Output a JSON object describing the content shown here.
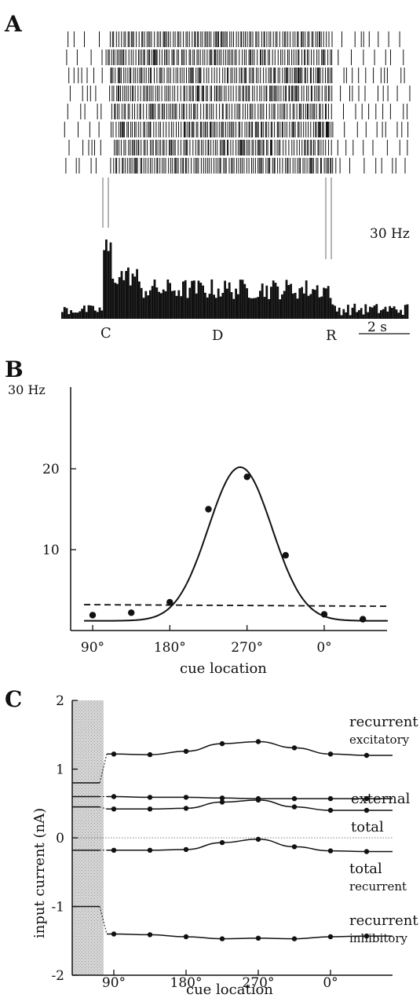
{
  "panels": [
    {
      "letter": "A",
      "type": "raster-psth",
      "scale_label": "30 Hz",
      "event_labels": [
        "C",
        "D",
        "R"
      ],
      "time_scale_label": "2 s",
      "raster_rows": 8,
      "psth_baseline_rate": 2,
      "psth_cue_peak_rate": 14,
      "psth_delay_rate": 6
    },
    {
      "letter": "B",
      "type": "tuning-curve",
      "chart_data": {
        "type": "scatter",
        "ylabel_top": "30 Hz",
        "xlabel": "cue location",
        "xticks": [
          "90°",
          "180°",
          "270°",
          "0°"
        ],
        "yticks": [
          "10",
          "20"
        ],
        "ylim": [
          0,
          30
        ],
        "points_x_deg": [
          90,
          135,
          180,
          225,
          270,
          315,
          360,
          405
        ],
        "points_y": [
          1.9,
          2.2,
          3.5,
          15.0,
          19.0,
          9.3,
          2.0,
          1.4
        ],
        "fit": {
          "type": "gaussian",
          "baseline": 1.2,
          "amplitude": 19.0,
          "center_deg": 262,
          "sigma_deg": 37
        },
        "dashed_baseline": {
          "start": 3.2,
          "end": 3.0
        }
      }
    },
    {
      "letter": "C",
      "type": "input-currents",
      "chart_data": {
        "type": "line",
        "xlabel": "cue location",
        "ylabel": "input current (nA)",
        "xticks": [
          "90°",
          "180°",
          "270°",
          "0°"
        ],
        "yticks": [
          "-2",
          "-1",
          "0",
          "1",
          "2"
        ],
        "ylim": [
          -2,
          2
        ],
        "x_points_deg": [
          90,
          135,
          180,
          225,
          270,
          315,
          360,
          405
        ],
        "series": [
          {
            "name": "recurrent excitatory",
            "label_main": "recurrent",
            "label_sub": "excitatory",
            "pre_value": 0.8,
            "values": [
              1.22,
              1.21,
              1.26,
              1.37,
              1.4,
              1.31,
              1.22,
              1.2
            ]
          },
          {
            "name": "external",
            "label_main": "external",
            "label_sub": "",
            "pre_value": 0.6,
            "values": [
              0.6,
              0.59,
              0.59,
              0.58,
              0.57,
              0.57,
              0.57,
              0.57
            ]
          },
          {
            "name": "total",
            "label_main": "total",
            "label_sub": "",
            "pre_value": 0.45,
            "values": [
              0.42,
              0.42,
              0.43,
              0.52,
              0.55,
              0.45,
              0.4,
              0.4
            ]
          },
          {
            "name": "total recurrent",
            "label_main": "total",
            "label_sub": "recurrent",
            "pre_value": -0.18,
            "values": [
              -0.18,
              -0.18,
              -0.17,
              -0.07,
              -0.02,
              -0.13,
              -0.19,
              -0.2
            ]
          },
          {
            "name": "recurrent inhibitory",
            "label_main": "recurrent",
            "label_sub": "inhibitory",
            "pre_value": -1.0,
            "values": [
              -1.4,
              -1.41,
              -1.44,
              -1.47,
              -1.46,
              -1.47,
              -1.44,
              -1.43
            ]
          }
        ]
      }
    }
  ]
}
